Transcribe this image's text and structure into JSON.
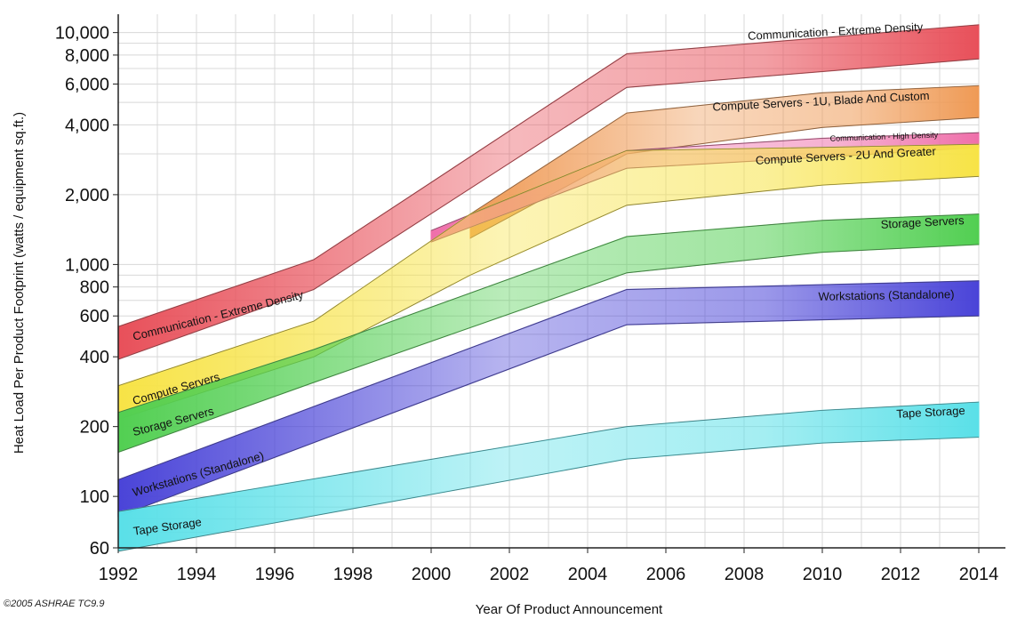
{
  "chart_data": {
    "type": "area",
    "title": "",
    "xlabel": "Year Of Product Announcement",
    "ylabel": "Heat Load Per Product Footprint (watts / equipment sq.ft.)",
    "xlim": [
      1992,
      2014
    ],
    "ylim": [
      60,
      12000
    ],
    "y_scale": "log",
    "grid": true,
    "x_ticks": [
      "1992",
      "1994",
      "1996",
      "1998",
      "2000",
      "2002",
      "2004",
      "2006",
      "2008",
      "2010",
      "2012",
      "2014"
    ],
    "y_ticks": [
      {
        "value": 60,
        "label": "60"
      },
      {
        "value": 100,
        "label": "100"
      },
      {
        "value": 200,
        "label": "200"
      },
      {
        "value": 400,
        "label": "400"
      },
      {
        "value": 600,
        "label": "600"
      },
      {
        "value": 800,
        "label": "800"
      },
      {
        "value": 1000,
        "label": "1,000"
      },
      {
        "value": 2000,
        "label": "2,000"
      },
      {
        "value": 4000,
        "label": "4,000"
      },
      {
        "value": 6000,
        "label": "6,000"
      },
      {
        "value": 8000,
        "label": "8,000"
      },
      {
        "value": 10000,
        "label": "10,000"
      }
    ],
    "bands": [
      {
        "id": "communication-extreme-density",
        "color": "#e8505a",
        "upper": [
          [
            1992,
            540
          ],
          [
            1997,
            1050
          ],
          [
            2005,
            8100
          ],
          [
            2014,
            10800
          ]
        ],
        "lower": [
          [
            1992,
            390
          ],
          [
            1997,
            780
          ],
          [
            2005,
            5800
          ],
          [
            2014,
            7700
          ]
        ]
      },
      {
        "id": "compute-servers-1u",
        "color": "#ef9a55",
        "upper": [
          [
            2001,
            1650
          ],
          [
            2005,
            4500
          ],
          [
            2010,
            5500
          ],
          [
            2014,
            5900
          ]
        ],
        "lower": [
          [
            2001,
            1300
          ],
          [
            2005,
            3000
          ],
          [
            2010,
            3900
          ],
          [
            2014,
            4300
          ]
        ]
      },
      {
        "id": "communication-high-density",
        "color": "#ef6faa",
        "upper": [
          [
            2000,
            1400
          ],
          [
            2005,
            3100
          ],
          [
            2010,
            3500
          ],
          [
            2014,
            3700
          ]
        ],
        "lower": [
          [
            2000,
            1250
          ],
          [
            2005,
            2600
          ],
          [
            2010,
            2900
          ],
          [
            2014,
            3200
          ]
        ]
      },
      {
        "id": "compute-servers",
        "color": "#f7e346",
        "upper": [
          [
            1992,
            300
          ],
          [
            1997,
            570
          ],
          [
            2001,
            1650
          ],
          [
            2005,
            3100
          ],
          [
            2010,
            3200
          ],
          [
            2014,
            3300
          ]
        ],
        "lower": [
          [
            1992,
            215
          ],
          [
            1997,
            400
          ],
          [
            2001,
            900
          ],
          [
            2005,
            1800
          ],
          [
            2010,
            2200
          ],
          [
            2014,
            2400
          ]
        ]
      },
      {
        "id": "storage-servers",
        "color": "#52cf52",
        "upper": [
          [
            1992,
            230
          ],
          [
            1997,
            430
          ],
          [
            2005,
            1320
          ],
          [
            2010,
            1550
          ],
          [
            2014,
            1650
          ]
        ],
        "lower": [
          [
            1992,
            155
          ],
          [
            1997,
            310
          ],
          [
            2005,
            920
          ],
          [
            2010,
            1130
          ],
          [
            2014,
            1220
          ]
        ]
      },
      {
        "id": "workstations-standalone",
        "color": "#4a44d8",
        "upper": [
          [
            1992,
            118
          ],
          [
            2005,
            780
          ],
          [
            2014,
            850
          ]
        ],
        "lower": [
          [
            1992,
            82
          ],
          [
            2005,
            550
          ],
          [
            2014,
            600
          ]
        ]
      },
      {
        "id": "tape-storage",
        "color": "#5ae0e8",
        "upper": [
          [
            1992,
            86
          ],
          [
            2005,
            200
          ],
          [
            2010,
            235
          ],
          [
            2014,
            255
          ]
        ],
        "lower": [
          [
            1992,
            58
          ],
          [
            2005,
            145
          ],
          [
            2010,
            170
          ],
          [
            2014,
            180
          ]
        ]
      }
    ],
    "annotations": [
      {
        "band": "communication-extreme-density",
        "text": "Communication - Extreme Density",
        "x": 1992.4,
        "y": 470,
        "angle": -14
      },
      {
        "band": "communication-extreme-density",
        "text": "Communication - Extreme Density",
        "x": 2008.1,
        "y": 9300,
        "angle": -3
      },
      {
        "band": "compute-servers-1u",
        "text": "Compute Servers - 1U, Blade And Custom",
        "x": 2007.2,
        "y": 4600,
        "angle": -3
      },
      {
        "band": "communication-high-density",
        "text": "Communication - High Density",
        "x": 2010.2,
        "y": 3400,
        "angle": -2,
        "small": true
      },
      {
        "band": "compute-servers",
        "text": "Compute Servers - 2U And Greater",
        "x": 2008.3,
        "y": 2700,
        "angle": -3
      },
      {
        "band": "compute-servers",
        "text": "Compute Servers",
        "x": 1992.4,
        "y": 248,
        "angle": -16
      },
      {
        "band": "storage-servers",
        "text": "Storage Servers",
        "x": 1992.4,
        "y": 182,
        "angle": -15
      },
      {
        "band": "storage-servers",
        "text": "Storage Servers",
        "x": 2011.5,
        "y": 1430,
        "angle": -3
      },
      {
        "band": "workstations-standalone",
        "text": "Workstations (Standalone)",
        "x": 1992.4,
        "y": 100,
        "angle": -16
      },
      {
        "band": "workstations-standalone",
        "text": "Workstations (Standalone)",
        "x": 2009.9,
        "y": 700,
        "angle": -1
      },
      {
        "band": "tape-storage",
        "text": "Tape Storage",
        "x": 1992.4,
        "y": 68,
        "angle": -8
      },
      {
        "band": "tape-storage",
        "text": "Tape Storage",
        "x": 2011.9,
        "y": 218,
        "angle": -3
      }
    ]
  },
  "footer": {
    "copyright": "©2005 ASHRAE TC9.9"
  }
}
